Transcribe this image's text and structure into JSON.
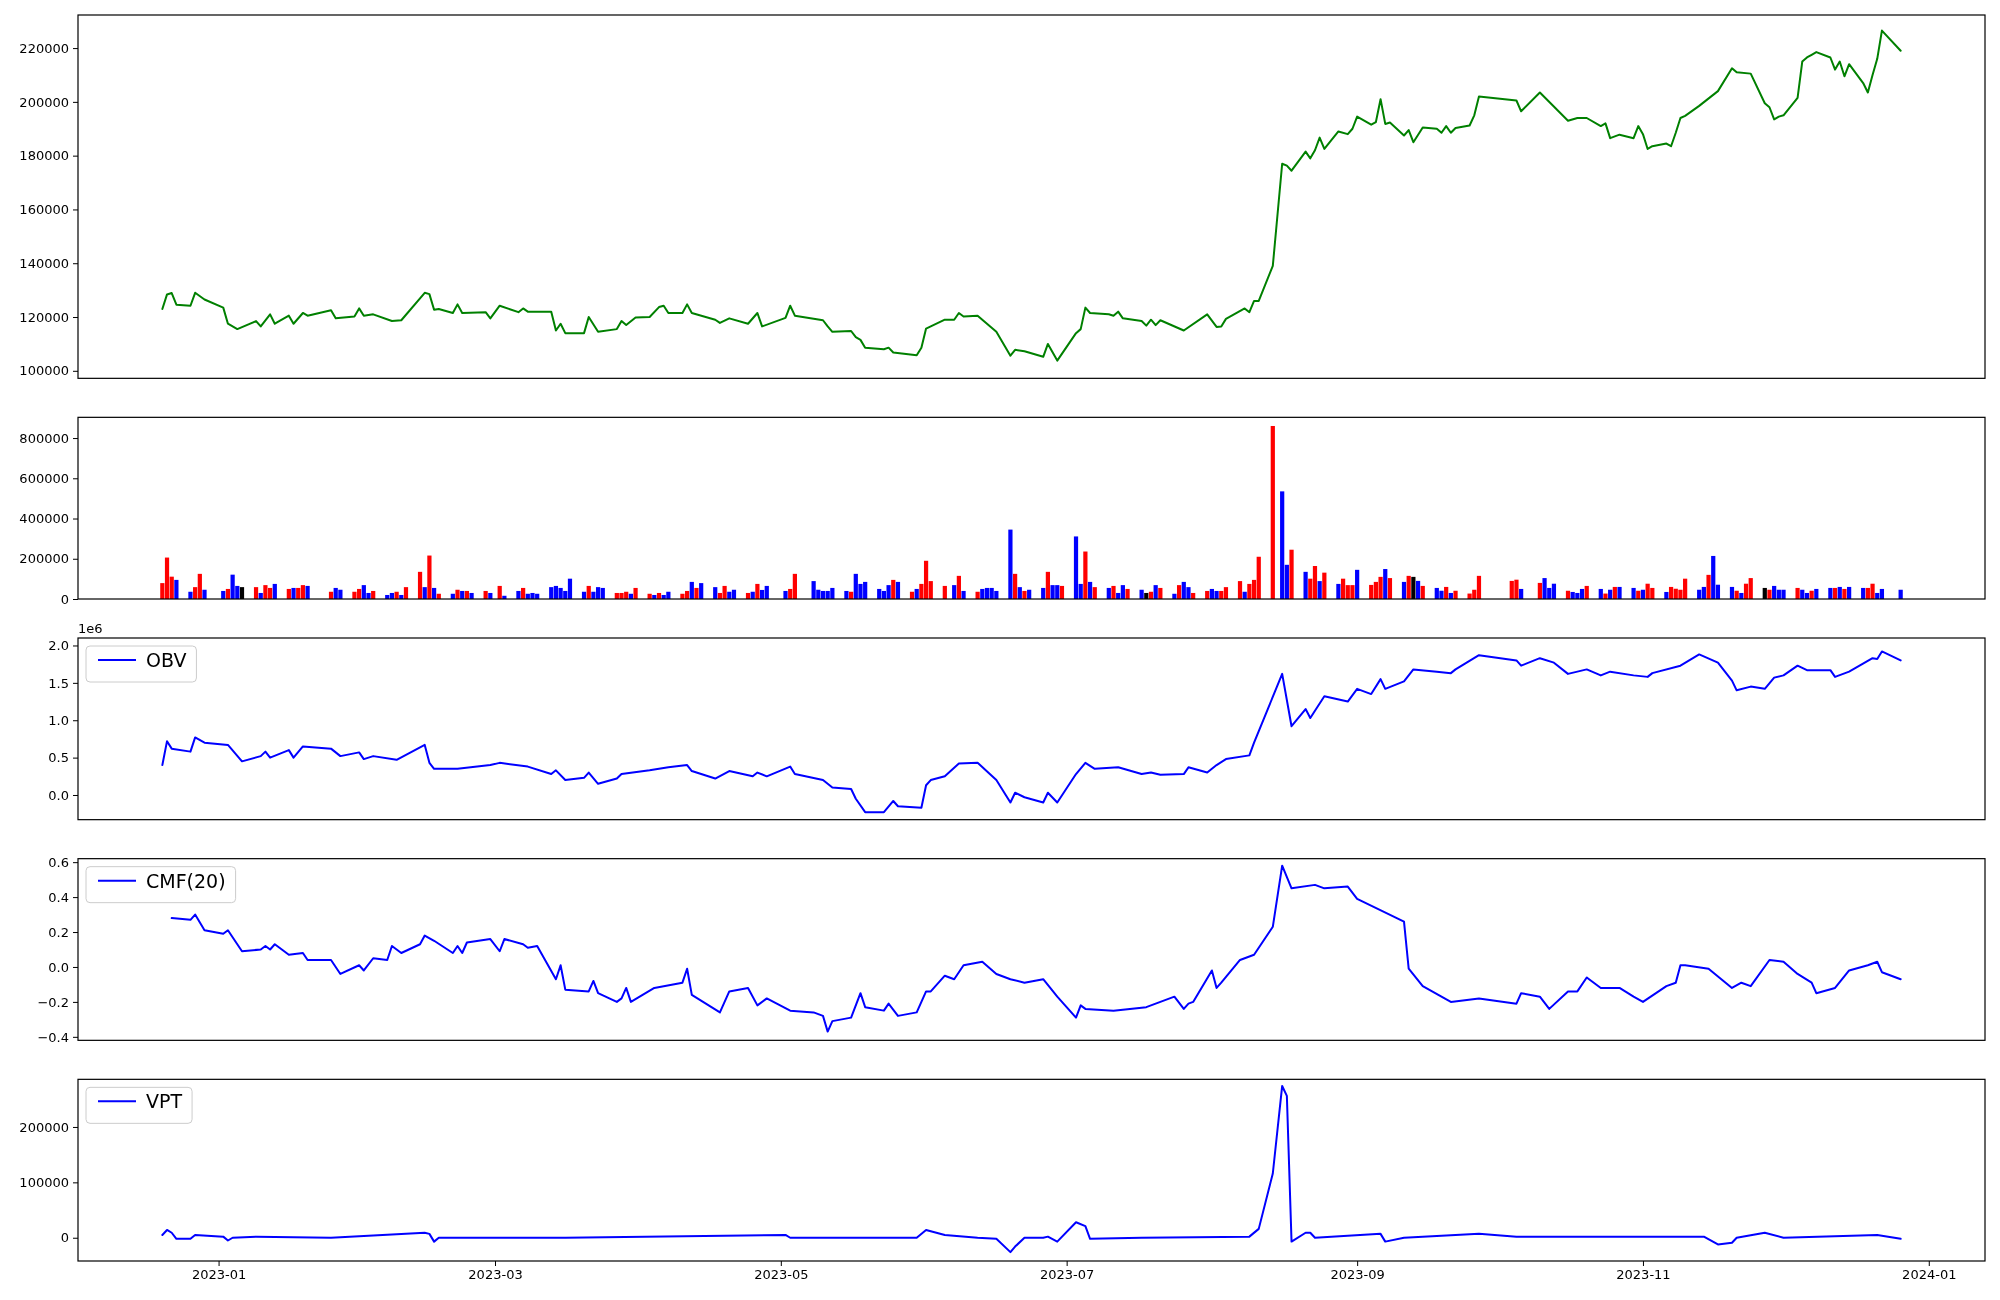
{
  "chart_data": [
    {
      "type": "line",
      "xlim": [
        "2022-12-02",
        "2024-01-13"
      ],
      "ylim": [
        97200,
        232300
      ],
      "yticks": [
        100000,
        120000,
        140000,
        160000,
        180000,
        200000,
        220000
      ],
      "tick_labels": "y",
      "x": [
        "2022-12-20",
        "2022-12-21",
        "2022-12-22",
        "2022-12-23",
        "2022-12-26",
        "2022-12-27",
        "2022-12-29",
        "2023-01-02",
        "2023-01-03",
        "2023-01-05",
        "2023-01-09",
        "2023-01-10",
        "2023-01-12",
        "2023-01-13",
        "2023-01-16",
        "2023-01-17",
        "2023-01-19",
        "2023-01-20",
        "2023-01-25",
        "2023-01-26",
        "2023-01-30",
        "2023-01-31",
        "2023-02-01",
        "2023-02-03",
        "2023-02-07",
        "2023-02-09",
        "2023-02-14",
        "2023-02-15",
        "2023-02-16",
        "2023-02-17",
        "2023-02-20",
        "2023-02-21",
        "2023-02-22",
        "2023-02-27",
        "2023-02-28",
        "2023-03-02",
        "2023-03-06",
        "2023-03-07",
        "2023-03-08",
        "2023-03-13",
        "2023-03-14",
        "2023-03-15",
        "2023-03-16",
        "2023-03-20",
        "2023-03-21",
        "2023-03-23",
        "2023-03-27",
        "2023-03-28",
        "2023-03-29",
        "2023-03-31",
        "2023-04-03",
        "2023-04-05",
        "2023-04-06",
        "2023-04-07",
        "2023-04-10",
        "2023-04-11",
        "2023-04-12",
        "2023-04-17",
        "2023-04-18",
        "2023-04-20",
        "2023-04-24",
        "2023-04-26",
        "2023-04-27",
        "2023-05-02",
        "2023-05-03",
        "2023-05-04",
        "2023-05-10",
        "2023-05-11",
        "2023-05-12",
        "2023-05-16",
        "2023-05-17",
        "2023-05-18",
        "2023-05-19",
        "2023-05-23",
        "2023-05-24",
        "2023-05-25",
        "2023-05-30",
        "2023-05-31",
        "2023-06-01",
        "2023-06-02",
        "2023-06-05",
        "2023-06-07",
        "2023-06-08",
        "2023-06-09",
        "2023-06-12",
        "2023-06-16",
        "2023-06-19",
        "2023-06-20",
        "2023-06-22",
        "2023-06-26",
        "2023-06-27",
        "2023-06-29",
        "2023-07-03",
        "2023-07-04",
        "2023-07-05",
        "2023-07-06",
        "2023-07-10",
        "2023-07-11",
        "2023-07-12",
        "2023-07-13",
        "2023-07-17",
        "2023-07-18",
        "2023-07-19",
        "2023-07-20",
        "2023-07-21",
        "2023-07-26",
        "2023-07-31",
        "2023-08-02",
        "2023-08-03",
        "2023-08-04",
        "2023-08-08",
        "2023-08-09",
        "2023-08-10",
        "2023-08-11",
        "2023-08-14",
        "2023-08-16",
        "2023-08-17",
        "2023-08-18",
        "2023-08-21",
        "2023-08-22",
        "2023-08-23",
        "2023-08-24",
        "2023-08-25",
        "2023-08-28",
        "2023-08-30",
        "2023-08-31",
        "2023-09-01",
        "2023-09-04",
        "2023-09-05",
        "2023-09-06",
        "2023-09-07",
        "2023-09-08",
        "2023-09-11",
        "2023-09-12",
        "2023-09-13",
        "2023-09-15",
        "2023-09-18",
        "2023-09-19",
        "2023-09-20",
        "2023-09-21",
        "2023-09-22",
        "2023-09-25",
        "2023-09-26",
        "2023-09-27",
        "2023-10-05",
        "2023-10-06",
        "2023-10-10",
        "2023-10-16",
        "2023-10-18",
        "2023-10-20",
        "2023-10-23",
        "2023-10-24",
        "2023-10-25",
        "2023-10-27",
        "2023-10-30",
        "2023-10-31",
        "2023-11-01",
        "2023-11-02",
        "2023-11-03",
        "2023-11-06",
        "2023-11-07",
        "2023-11-08",
        "2023-11-09",
        "2023-11-10",
        "2023-11-13",
        "2023-11-17",
        "2023-11-20",
        "2023-11-21",
        "2023-11-24",
        "2023-11-27",
        "2023-11-28",
        "2023-11-29",
        "2023-11-30",
        "2023-12-01",
        "2023-12-04",
        "2023-12-05",
        "2023-12-06",
        "2023-12-07",
        "2023-12-08",
        "2023-12-11",
        "2023-12-12",
        "2023-12-13",
        "2023-12-14",
        "2023-12-15",
        "2023-12-18",
        "2023-12-19",
        "2023-12-20",
        "2023-12-21",
        "2023-12-22",
        "2023-12-26"
      ],
      "series": [
        {
          "color": "#008000",
          "values": [
            123000,
            128400,
            128900,
            124600,
            124200,
            129000,
            126500,
            123500,
            117500,
            115500,
            118500,
            116500,
            121000,
            117500,
            120500,
            117500,
            121500,
            120500,
            122500,
            119500,
            120200,
            123200,
            120500,
            121000,
            118500,
            118800,
            129000,
            128500,
            122700,
            123000,
            121500,
            124700,
            121500,
            121800,
            119500,
            124200,
            121800,
            123200,
            122000,
            122000,
            115000,
            117500,
            114000,
            114000,
            120000,
            114500,
            115500,
            118500,
            117000,
            119800,
            120000,
            123700,
            124200,
            121500,
            121500,
            124700,
            121500,
            119000,
            117800,
            119500,
            117500,
            121500,
            116500,
            119700,
            124200,
            120500,
            118800,
            116500,
            114500,
            114800,
            112500,
            111500,
            108600,
            108000,
            108600,
            106800,
            105800,
            108600,
            115700,
            116500,
            119000,
            119000,
            121500,
            120200,
            120500,
            114500,
            105600,
            107800,
            107300,
            105200,
            110000,
            103800,
            114000,
            115500,
            123500,
            121500,
            121000,
            120500,
            122000,
            119500,
            118500,
            116800,
            119000,
            117000,
            118800,
            115000,
            121000,
            116300,
            116500,
            119300,
            123200,
            121800,
            126000,
            126000,
            139000,
            177000,
            176300,
            174400,
            181500,
            179000,
            182000,
            186700,
            182500,
            189000,
            188000,
            190000,
            194500,
            191500,
            192500,
            201000,
            191800,
            192300,
            187500,
            189500,
            185000,
            190500,
            190000,
            188500,
            191000,
            188500,
            190300,
            191200,
            195000,
            202000,
            200500,
            196500,
            203500,
            193000,
            194000,
            194000,
            191000,
            192000,
            186500,
            187800,
            186500,
            191000,
            188000,
            182500,
            183500,
            184500,
            183500,
            188500,
            194000,
            194800,
            198500,
            204000,
            212500,
            211000,
            210500,
            199500,
            198000,
            193500,
            194500,
            195000,
            201500,
            215000,
            216500,
            217500,
            218500,
            216500,
            212000,
            215000,
            209500,
            214000,
            207000,
            203500,
            210000,
            216000,
            226500,
            219000
          ]
        }
      ]
    },
    {
      "type": "bar",
      "xlim": [
        "2022-12-02",
        "2024-01-13"
      ],
      "ylim": [
        0,
        903000
      ],
      "yticks": [
        0,
        200000,
        400000,
        600000,
        800000
      ],
      "tick_labels": "y",
      "x": [
        "2022-12-20",
        "2022-12-21",
        "2022-12-22",
        "2022-12-23",
        "2022-12-26",
        "2022-12-27",
        "2022-12-28",
        "2022-12-29",
        "2023-01-02",
        "2023-01-03",
        "2023-01-04",
        "2023-01-05",
        "2023-01-06",
        "2023-01-09",
        "2023-01-10",
        "2023-01-11",
        "2023-01-12",
        "2023-01-13",
        "2023-01-16",
        "2023-01-17",
        "2023-01-18",
        "2023-01-19",
        "2023-01-20",
        "2023-01-25",
        "2023-01-26",
        "2023-01-27",
        "2023-01-30",
        "2023-01-31",
        "2023-02-01",
        "2023-02-02",
        "2023-02-03",
        "2023-02-06",
        "2023-02-07",
        "2023-02-08",
        "2023-02-09",
        "2023-02-10",
        "2023-02-13",
        "2023-02-14",
        "2023-02-15",
        "2023-02-16",
        "2023-02-17",
        "2023-02-20",
        "2023-02-21",
        "2023-02-22",
        "2023-02-23",
        "2023-02-24",
        "2023-02-27",
        "2023-02-28",
        "2023-03-02",
        "2023-03-03",
        "2023-03-06",
        "2023-03-07",
        "2023-03-08",
        "2023-03-09",
        "2023-03-10",
        "2023-03-13",
        "2023-03-14",
        "2023-03-15",
        "2023-03-16",
        "2023-03-17",
        "2023-03-20",
        "2023-03-21",
        "2023-03-22",
        "2023-03-23",
        "2023-03-24",
        "2023-03-27",
        "2023-03-28",
        "2023-03-29",
        "2023-03-30",
        "2023-03-31",
        "2023-04-03",
        "2023-04-04",
        "2023-04-05",
        "2023-04-06",
        "2023-04-07",
        "2023-04-10",
        "2023-04-11",
        "2023-04-12",
        "2023-04-13",
        "2023-04-14",
        "2023-04-17",
        "2023-04-18",
        "2023-04-19",
        "2023-04-20",
        "2023-04-21",
        "2023-04-24",
        "2023-04-25",
        "2023-04-26",
        "2023-04-27",
        "2023-04-28",
        "2023-05-02",
        "2023-05-03",
        "2023-05-04",
        "2023-05-08",
        "2023-05-09",
        "2023-05-10",
        "2023-05-11",
        "2023-05-12",
        "2023-05-15",
        "2023-05-16",
        "2023-05-17",
        "2023-05-18",
        "2023-05-19",
        "2023-05-22",
        "2023-05-23",
        "2023-05-24",
        "2023-05-25",
        "2023-05-26",
        "2023-05-29",
        "2023-05-30",
        "2023-05-31",
        "2023-06-01",
        "2023-06-02",
        "2023-06-05",
        "2023-06-07",
        "2023-06-08",
        "2023-06-09",
        "2023-06-12",
        "2023-06-13",
        "2023-06-14",
        "2023-06-15",
        "2023-06-16",
        "2023-06-19",
        "2023-06-20",
        "2023-06-21",
        "2023-06-22",
        "2023-06-23",
        "2023-06-26",
        "2023-06-27",
        "2023-06-28",
        "2023-06-29",
        "2023-06-30",
        "2023-07-03",
        "2023-07-04",
        "2023-07-05",
        "2023-07-06",
        "2023-07-07",
        "2023-07-10",
        "2023-07-11",
        "2023-07-12",
        "2023-07-13",
        "2023-07-14",
        "2023-07-17",
        "2023-07-18",
        "2023-07-19",
        "2023-07-20",
        "2023-07-21",
        "2023-07-24",
        "2023-07-25",
        "2023-07-26",
        "2023-07-27",
        "2023-07-28",
        "2023-07-31",
        "2023-08-01",
        "2023-08-02",
        "2023-08-03",
        "2023-08-04",
        "2023-08-07",
        "2023-08-08",
        "2023-08-09",
        "2023-08-10",
        "2023-08-11",
        "2023-08-14",
        "2023-08-16",
        "2023-08-17",
        "2023-08-18",
        "2023-08-21",
        "2023-08-22",
        "2023-08-23",
        "2023-08-24",
        "2023-08-25",
        "2023-08-28",
        "2023-08-29",
        "2023-08-30",
        "2023-08-31",
        "2023-09-01",
        "2023-09-04",
        "2023-09-05",
        "2023-09-06",
        "2023-09-07",
        "2023-09-08",
        "2023-09-11",
        "2023-09-12",
        "2023-09-13",
        "2023-09-14",
        "2023-09-15",
        "2023-09-18",
        "2023-09-19",
        "2023-09-20",
        "2023-09-21",
        "2023-09-22",
        "2023-09-25",
        "2023-09-26",
        "2023-09-27",
        "2023-10-04",
        "2023-10-05",
        "2023-10-06",
        "2023-10-10",
        "2023-10-11",
        "2023-10-12",
        "2023-10-13",
        "2023-10-16",
        "2023-10-17",
        "2023-10-18",
        "2023-10-19",
        "2023-10-20",
        "2023-10-23",
        "2023-10-24",
        "2023-10-25",
        "2023-10-26",
        "2023-10-27",
        "2023-10-30",
        "2023-10-31",
        "2023-11-01",
        "2023-11-02",
        "2023-11-03",
        "2023-11-06",
        "2023-11-07",
        "2023-11-08",
        "2023-11-09",
        "2023-11-10",
        "2023-11-13",
        "2023-11-14",
        "2023-11-15",
        "2023-11-16",
        "2023-11-17",
        "2023-11-20",
        "2023-11-21",
        "2023-11-22",
        "2023-11-23",
        "2023-11-24",
        "2023-11-27",
        "2023-11-28",
        "2023-11-29",
        "2023-11-30",
        "2023-12-01",
        "2023-12-04",
        "2023-12-05",
        "2023-12-06",
        "2023-12-07",
        "2023-12-08",
        "2023-12-11",
        "2023-12-12",
        "2023-12-13",
        "2023-12-14",
        "2023-12-15",
        "2023-12-18",
        "2023-12-19",
        "2023-12-20",
        "2023-12-21",
        "2023-12-22",
        "2023-12-26"
      ],
      "values": [
        79000,
        206000,
        111000,
        95000,
        36000,
        59000,
        125000,
        46000,
        40000,
        50000,
        121000,
        65000,
        59000,
        59000,
        30000,
        69000,
        55000,
        75000,
        50000,
        55000,
        55000,
        69000,
        65000,
        36000,
        55000,
        46000,
        36000,
        50000,
        69000,
        30000,
        40000,
        20000,
        30000,
        36000,
        20000,
        59000,
        135000,
        59000,
        216000,
        55000,
        26000,
        26000,
        46000,
        40000,
        40000,
        30000,
        40000,
        30000,
        65000,
        16000,
        40000,
        55000,
        26000,
        30000,
        26000,
        59000,
        65000,
        55000,
        40000,
        101000,
        36000,
        65000,
        36000,
        59000,
        55000,
        30000,
        30000,
        36000,
        26000,
        55000,
        26000,
        20000,
        30000,
        20000,
        36000,
        26000,
        40000,
        85000,
        55000,
        79000,
        59000,
        30000,
        65000,
        36000,
        46000,
        30000,
        36000,
        75000,
        45000,
        65000,
        40000,
        50000,
        125000,
        89000,
        46000,
        40000,
        40000,
        55000,
        40000,
        36000,
        125000,
        75000,
        85000,
        50000,
        40000,
        69000,
        95000,
        85000,
        36000,
        50000,
        75000,
        190000,
        89000,
        65000,
        69000,
        115000,
        40000,
        36000,
        50000,
        55000,
        55000,
        40000,
        345000,
        125000,
        59000,
        40000,
        46000,
        55000,
        135000,
        69000,
        69000,
        65000,
        311000,
        75000,
        236000,
        85000,
        59000,
        55000,
        65000,
        30000,
        69000,
        50000,
        46000,
        30000,
        36000,
        69000,
        55000,
        26000,
        69000,
        85000,
        59000,
        30000,
        40000,
        50000,
        40000,
        40000,
        59000,
        89000,
        36000,
        75000,
        95000,
        210000,
        860000,
        535000,
        170000,
        245000,
        135000,
        101000,
        164000,
        89000,
        131000,
        75000,
        101000,
        69000,
        69000,
        145000,
        70000,
        85000,
        110000,
        149000,
        104000,
        85000,
        115000,
        110000,
        90000,
        65000,
        55000,
        41000,
        60000,
        30000,
        41000,
        27000,
        46000,
        115000,
        90000,
        96000,
        50000,
        80000,
        104000,
        55000,
        76000,
        41000,
        35000,
        30000,
        50000,
        65000,
        50000,
        27000,
        46000,
        60000,
        60000,
        55000,
        41000,
        46000,
        76000,
        55000,
        35000,
        60000,
        51000,
        46000,
        101000,
        46000,
        60000,
        120000,
        214000,
        71000,
        60000,
        41000,
        30000,
        76000,
        104000,
        55000,
        46000,
        65000,
        46000,
        46000,
        55000,
        46000,
        30000,
        41000,
        50000,
        55000,
        55000,
        60000,
        50000,
        60000,
        55000,
        55000,
        76000,
        30000,
        50000,
        46000
      ],
      "colors": [
        "#ff0000",
        "#ff0000",
        "#ff0000",
        "#0000ff",
        "#0000ff",
        "#ff0000",
        "#ff0000",
        "#0000ff",
        "#0000ff",
        "#ff0000",
        "#0000ff",
        "#0000ff",
        "#000000",
        "#ff0000",
        "#0000ff",
        "#ff0000",
        "#ff0000",
        "#0000ff",
        "#ff0000",
        "#0000ff",
        "#ff0000",
        "#ff0000",
        "#0000ff",
        "#ff0000",
        "#0000ff",
        "#0000ff",
        "#ff0000",
        "#ff0000",
        "#0000ff",
        "#0000ff",
        "#ff0000",
        "#0000ff",
        "#0000ff",
        "#ff0000",
        "#0000ff",
        "#ff0000",
        "#ff0000",
        "#0000ff",
        "#ff0000",
        "#0000ff",
        "#ff0000",
        "#0000ff",
        "#ff0000",
        "#0000ff",
        "#ff0000",
        "#0000ff",
        "#ff0000",
        "#0000ff",
        "#ff0000",
        "#0000ff",
        "#0000ff",
        "#ff0000",
        "#0000ff",
        "#0000ff",
        "#0000ff",
        "#0000ff",
        "#0000ff",
        "#0000ff",
        "#0000ff",
        "#0000ff",
        "#0000ff",
        "#ff0000",
        "#0000ff",
        "#0000ff",
        "#0000ff",
        "#ff0000",
        "#ff0000",
        "#ff0000",
        "#0000ff",
        "#ff0000",
        "#ff0000",
        "#0000ff",
        "#ff0000",
        "#0000ff",
        "#0000ff",
        "#ff0000",
        "#ff0000",
        "#0000ff",
        "#ff0000",
        "#0000ff",
        "#0000ff",
        "#ff0000",
        "#ff0000",
        "#0000ff",
        "#0000ff",
        "#ff0000",
        "#0000ff",
        "#ff0000",
        "#0000ff",
        "#0000ff",
        "#0000ff",
        "#ff0000",
        "#ff0000",
        "#0000ff",
        "#0000ff",
        "#0000ff",
        "#0000ff",
        "#0000ff",
        "#0000ff",
        "#ff0000",
        "#0000ff",
        "#0000ff",
        "#0000ff",
        "#0000ff",
        "#0000ff",
        "#0000ff",
        "#ff0000",
        "#0000ff",
        "#ff0000",
        "#0000ff",
        "#ff0000",
        "#ff0000",
        "#ff0000",
        "#ff0000",
        "#0000ff",
        "#ff0000",
        "#0000ff",
        "#ff0000",
        "#0000ff",
        "#0000ff",
        "#0000ff",
        "#0000ff",
        "#0000ff",
        "#ff0000",
        "#0000ff",
        "#ff0000",
        "#0000ff",
        "#0000ff",
        "#ff0000",
        "#0000ff",
        "#0000ff",
        "#ff0000",
        "#0000ff",
        "#0000ff",
        "#ff0000",
        "#0000ff",
        "#ff0000",
        "#0000ff",
        "#ff0000",
        "#0000ff",
        "#0000ff",
        "#ff0000",
        "#0000ff",
        "#000000",
        "#ff0000",
        "#0000ff",
        "#ff0000",
        "#0000ff",
        "#ff0000",
        "#0000ff",
        "#0000ff",
        "#ff0000",
        "#ff0000",
        "#0000ff",
        "#0000ff",
        "#ff0000",
        "#ff0000",
        "#ff0000",
        "#0000ff",
        "#ff0000",
        "#ff0000",
        "#ff0000",
        "#ff0000",
        "#0000ff",
        "#0000ff",
        "#ff0000",
        "#0000ff",
        "#ff0000",
        "#ff0000",
        "#0000ff",
        "#ff0000",
        "#0000ff",
        "#ff0000",
        "#ff0000",
        "#ff0000",
        "#0000ff",
        "#ff0000",
        "#ff0000",
        "#ff0000",
        "#0000ff",
        "#ff0000",
        "#0000ff",
        "#ff0000",
        "#000000",
        "#0000ff",
        "#ff0000",
        "#0000ff",
        "#0000ff",
        "#ff0000",
        "#0000ff",
        "#ff0000",
        "#ff0000",
        "#ff0000",
        "#ff0000",
        "#ff0000",
        "#ff0000",
        "#0000ff",
        "#ff0000",
        "#0000ff",
        "#0000ff",
        "#0000ff",
        "#ff0000",
        "#0000ff",
        "#0000ff",
        "#0000ff",
        "#ff0000",
        "#0000ff",
        "#ff0000",
        "#0000ff",
        "#ff0000",
        "#0000ff",
        "#0000ff",
        "#ff0000",
        "#0000ff",
        "#ff0000",
        "#ff0000",
        "#0000ff",
        "#ff0000",
        "#ff0000",
        "#ff0000",
        "#ff0000",
        "#0000ff",
        "#0000ff",
        "#ff0000",
        "#0000ff",
        "#0000ff",
        "#0000ff",
        "#ff0000",
        "#0000ff",
        "#ff0000",
        "#ff0000",
        "#000000",
        "#ff0000",
        "#0000ff",
        "#0000ff",
        "#0000ff",
        "#ff0000",
        "#0000ff",
        "#0000ff",
        "#ff0000",
        "#0000ff",
        "#0000ff",
        "#ff0000",
        "#0000ff",
        "#ff0000",
        "#0000ff",
        "#0000ff",
        "#ff0000",
        "#ff0000",
        "#0000ff",
        "#0000ff",
        "#0000ff"
      ]
    },
    {
      "type": "line",
      "xlim": [
        "2022-12-02",
        "2024-01-13"
      ],
      "ylim": [
        -0.33,
        2.1
      ],
      "yticks": [
        {
          "value": 0,
          "label": "0.0"
        },
        {
          "value": 0.5,
          "label": "0.5"
        },
        {
          "value": 1,
          "label": "1.0"
        },
        {
          "value": 1.5,
          "label": "1.5"
        },
        {
          "value": 2,
          "label": "2.0"
        }
      ],
      "tick_labels": "y",
      "legend": "top left",
      "annotations": [
        "1e6"
      ],
      "x": [
        "2022-12-20",
        "2022-12-21",
        "2022-12-22",
        "2022-12-26",
        "2022-12-27",
        "2022-12-29",
        "2023-01-03",
        "2023-01-06",
        "2023-01-10",
        "2023-01-11",
        "2023-01-12",
        "2023-01-16",
        "2023-01-17",
        "2023-01-19",
        "2023-01-25",
        "2023-01-27",
        "2023-01-31",
        "2023-02-01",
        "2023-02-03",
        "2023-02-08",
        "2023-02-14",
        "2023-02-15",
        "2023-02-16",
        "2023-02-21",
        "2023-02-28",
        "2023-03-02",
        "2023-03-08",
        "2023-03-13",
        "2023-03-14",
        "2023-03-16",
        "2023-03-20",
        "2023-03-21",
        "2023-03-23",
        "2023-03-27",
        "2023-03-28",
        "2023-04-03",
        "2023-04-07",
        "2023-04-11",
        "2023-04-12",
        "2023-04-17",
        "2023-04-20",
        "2023-04-25",
        "2023-04-26",
        "2023-04-28",
        "2023-05-03",
        "2023-05-04",
        "2023-05-10",
        "2023-05-12",
        "2023-05-16",
        "2023-05-17",
        "2023-05-19",
        "2023-05-23",
        "2023-05-25",
        "2023-05-26",
        "2023-05-31",
        "2023-06-01",
        "2023-06-02",
        "2023-06-05",
        "2023-06-08",
        "2023-06-12",
        "2023-06-16",
        "2023-06-19",
        "2023-06-20",
        "2023-06-22",
        "2023-06-26",
        "2023-06-27",
        "2023-06-29",
        "2023-07-03",
        "2023-07-05",
        "2023-07-07",
        "2023-07-12",
        "2023-07-17",
        "2023-07-19",
        "2023-07-21",
        "2023-07-26",
        "2023-07-27",
        "2023-07-31",
        "2023-08-02",
        "2023-08-04",
        "2023-08-09",
        "2023-08-10",
        "2023-08-16",
        "2023-08-18",
        "2023-08-21",
        "2023-08-22",
        "2023-08-25",
        "2023-08-30",
        "2023-09-01",
        "2023-09-04",
        "2023-09-06",
        "2023-09-07",
        "2023-09-11",
        "2023-09-13",
        "2023-09-18",
        "2023-09-21",
        "2023-09-22",
        "2023-09-27",
        "2023-10-05",
        "2023-10-06",
        "2023-10-10",
        "2023-10-13",
        "2023-10-16",
        "2023-10-20",
        "2023-10-23",
        "2023-10-25",
        "2023-10-30",
        "2023-11-02",
        "2023-11-03",
        "2023-11-09",
        "2023-11-13",
        "2023-11-17",
        "2023-11-20",
        "2023-11-21",
        "2023-11-24",
        "2023-11-27",
        "2023-11-29",
        "2023-12-01",
        "2023-12-04",
        "2023-12-06",
        "2023-12-11",
        "2023-12-12",
        "2023-12-15",
        "2023-12-20",
        "2023-12-21",
        "2023-12-22",
        "2023-12-26"
      ],
      "series": [
        {
          "name": "OBV",
          "color": "#0000ff",
          "values": [
            0.4,
            0.72,
            0.62,
            0.58,
            0.77,
            0.7,
            0.67,
            0.45,
            0.52,
            0.58,
            0.5,
            0.6,
            0.5,
            0.65,
            0.62,
            0.52,
            0.57,
            0.48,
            0.52,
            0.47,
            0.67,
            0.43,
            0.35,
            0.35,
            0.4,
            0.43,
            0.38,
            0.28,
            0.33,
            0.2,
            0.23,
            0.3,
            0.15,
            0.22,
            0.28,
            0.33,
            0.37,
            0.4,
            0.32,
            0.22,
            0.32,
            0.25,
            0.3,
            0.25,
            0.38,
            0.28,
            0.2,
            0.1,
            0.08,
            -0.05,
            -0.23,
            -0.23,
            -0.08,
            -0.15,
            -0.17,
            0.13,
            0.2,
            0.25,
            0.42,
            0.43,
            0.2,
            -0.1,
            0.03,
            -0.03,
            -0.1,
            0.03,
            -0.1,
            0.28,
            0.43,
            0.35,
            0.37,
            0.28,
            0.3,
            0.27,
            0.28,
            0.37,
            0.3,
            0.4,
            0.48,
            0.53,
            0.7,
            1.62,
            0.92,
            1.15,
            1.03,
            1.32,
            1.25,
            1.42,
            1.35,
            1.55,
            1.42,
            1.52,
            1.68,
            1.65,
            1.63,
            1.68,
            1.87,
            1.8,
            1.73,
            1.83,
            1.77,
            1.62,
            1.68,
            1.6,
            1.65,
            1.6,
            1.58,
            1.63,
            1.73,
            1.88,
            1.77,
            1.53,
            1.4,
            1.45,
            1.42,
            1.57,
            1.6,
            1.73,
            1.67,
            1.67,
            1.58,
            1.65,
            1.83,
            1.82,
            1.92,
            1.8
          ]
        }
      ]
    },
    {
      "type": "line",
      "xlim": [
        "2022-12-02",
        "2024-01-13"
      ],
      "ylim": [
        -0.42,
        0.62
      ],
      "yticks": [
        {
          "value": -0.4,
          "label": "−0.4"
        },
        {
          "value": -0.2,
          "label": "−0.2"
        },
        {
          "value": 0,
          "label": "0.0"
        },
        {
          "value": 0.2,
          "label": "0.2"
        },
        {
          "value": 0.4,
          "label": "0.4"
        },
        {
          "value": 0.6,
          "label": "0.6"
        }
      ],
      "tick_labels": "y",
      "legend": "top left",
      "x": [
        "2022-12-22",
        "2022-12-26",
        "2022-12-27",
        "2022-12-29",
        "2023-01-02",
        "2023-01-03",
        "2023-01-05",
        "2023-01-06",
        "2023-01-10",
        "2023-01-11",
        "2023-01-12",
        "2023-01-13",
        "2023-01-16",
        "2023-01-19",
        "2023-01-20",
        "2023-01-25",
        "2023-01-27",
        "2023-01-31",
        "2023-02-01",
        "2023-02-03",
        "2023-02-06",
        "2023-02-07",
        "2023-02-09",
        "2023-02-13",
        "2023-02-14",
        "2023-02-16",
        "2023-02-20",
        "2023-02-21",
        "2023-02-22",
        "2023-02-23",
        "2023-02-28",
        "2023-03-02",
        "2023-03-03",
        "2023-03-07",
        "2023-03-08",
        "2023-03-10",
        "2023-03-14",
        "2023-03-15",
        "2023-03-16",
        "2023-03-21",
        "2023-03-22",
        "2023-03-23",
        "2023-03-27",
        "2023-03-28",
        "2023-03-29",
        "2023-03-30",
        "2023-04-04",
        "2023-04-10",
        "2023-04-11",
        "2023-04-12",
        "2023-04-18",
        "2023-04-20",
        "2023-04-24",
        "2023-04-26",
        "2023-04-28",
        "2023-05-03",
        "2023-05-08",
        "2023-05-10",
        "2023-05-11",
        "2023-05-12",
        "2023-05-16",
        "2023-05-18",
        "2023-05-19",
        "2023-05-23",
        "2023-05-24",
        "2023-05-26",
        "2023-05-30",
        "2023-06-01",
        "2023-06-02",
        "2023-06-05",
        "2023-06-07",
        "2023-06-09",
        "2023-06-13",
        "2023-06-16",
        "2023-06-19",
        "2023-06-22",
        "2023-06-26",
        "2023-06-29",
        "2023-07-03",
        "2023-07-04",
        "2023-07-05",
        "2023-07-11",
        "2023-07-18",
        "2023-07-24",
        "2023-07-26",
        "2023-07-27",
        "2023-07-28",
        "2023-08-01",
        "2023-08-02",
        "2023-08-03",
        "2023-08-07",
        "2023-08-10",
        "2023-08-14",
        "2023-08-16",
        "2023-08-18",
        "2023-08-23",
        "2023-08-25",
        "2023-08-30",
        "2023-09-01",
        "2023-09-11",
        "2023-09-12",
        "2023-09-15",
        "2023-09-21",
        "2023-09-27",
        "2023-10-05",
        "2023-10-06",
        "2023-10-10",
        "2023-10-12",
        "2023-10-16",
        "2023-10-18",
        "2023-10-20",
        "2023-10-23",
        "2023-10-27",
        "2023-10-30",
        "2023-11-01",
        "2023-11-06",
        "2023-11-08",
        "2023-11-09",
        "2023-11-10",
        "2023-11-15",
        "2023-11-20",
        "2023-11-22",
        "2023-11-24",
        "2023-11-28",
        "2023-12-01",
        "2023-12-04",
        "2023-12-07",
        "2023-12-08",
        "2023-12-12",
        "2023-12-15",
        "2023-12-19",
        "2023-12-21",
        "2023-12-22",
        "2023-12-26"
      ],
      "series": [
        {
          "name": "CMF(20)",
          "color": "#0000ff",
          "values": [
            0.28,
            0.27,
            0.3,
            0.21,
            0.19,
            0.21,
            0.13,
            0.09,
            0.1,
            0.12,
            0.1,
            0.13,
            0.07,
            0.08,
            0.04,
            0.04,
            -0.04,
            0.01,
            -0.02,
            0.05,
            0.04,
            0.12,
            0.08,
            0.13,
            0.18,
            0.15,
            0.08,
            0.12,
            0.08,
            0.14,
            0.16,
            0.09,
            0.16,
            0.13,
            0.11,
            0.12,
            -0.07,
            0.01,
            -0.13,
            -0.14,
            -0.08,
            -0.15,
            -0.2,
            -0.18,
            -0.12,
            -0.2,
            -0.12,
            -0.09,
            -0.01,
            -0.16,
            -0.26,
            -0.14,
            -0.12,
            -0.22,
            -0.18,
            -0.25,
            -0.26,
            -0.28,
            -0.37,
            -0.31,
            -0.29,
            -0.15,
            -0.23,
            -0.25,
            -0.21,
            -0.28,
            -0.26,
            -0.14,
            -0.14,
            -0.05,
            -0.07,
            0.01,
            0.03,
            -0.04,
            -0.07,
            -0.09,
            -0.07,
            -0.17,
            -0.29,
            -0.22,
            -0.24,
            -0.25,
            -0.23,
            -0.17,
            -0.24,
            -0.21,
            -0.2,
            -0.02,
            -0.12,
            -0.09,
            0.04,
            0.07,
            0.23,
            0.58,
            0.45,
            0.47,
            0.45,
            0.46,
            0.39,
            0.26,
            -0.01,
            -0.11,
            -0.2,
            -0.18,
            -0.21,
            -0.15,
            -0.17,
            -0.24,
            -0.14,
            -0.14,
            -0.06,
            -0.12,
            -0.12,
            -0.17,
            -0.2,
            -0.11,
            -0.09,
            0.01,
            0.01,
            -0.01,
            -0.12,
            -0.09,
            -0.11,
            0.04,
            0.03,
            -0.04,
            -0.09,
            -0.15,
            -0.12,
            -0.02,
            0.01,
            0.03,
            -0.03,
            -0.07
          ]
        }
      ]
    },
    {
      "type": "line",
      "xlim": [
        "2022-12-02",
        "2024-01-13"
      ],
      "ylim": [
        -42000,
        286000
      ],
      "yticks": [
        0,
        100000,
        200000
      ],
      "xticks": [
        "2023-01",
        "2023-03",
        "2023-05",
        "2023-07",
        "2023-09",
        "2023-11",
        "2024-01"
      ],
      "legend": "top left",
      "x": [
        "2022-12-20",
        "2022-12-21",
        "2022-12-22",
        "2022-12-23",
        "2022-12-26",
        "2022-12-27",
        "2023-01-02",
        "2023-01-03",
        "2023-01-04",
        "2023-01-09",
        "2023-01-25",
        "2023-02-14",
        "2023-02-15",
        "2023-02-16",
        "2023-02-17",
        "2023-03-16",
        "2023-05-02",
        "2023-05-03",
        "2023-05-30",
        "2023-06-01",
        "2023-06-05",
        "2023-06-12",
        "2023-06-16",
        "2023-06-19",
        "2023-06-20",
        "2023-06-22",
        "2023-06-26",
        "2023-06-27",
        "2023-06-29",
        "2023-07-03",
        "2023-07-05",
        "2023-07-06",
        "2023-07-17",
        "2023-08-09",
        "2023-08-11",
        "2023-08-14",
        "2023-08-16",
        "2023-08-17",
        "2023-08-18",
        "2023-08-21",
        "2023-08-22",
        "2023-08-23",
        "2023-09-06",
        "2023-09-07",
        "2023-09-11",
        "2023-09-27",
        "2023-10-05",
        "2023-11-14",
        "2023-11-17",
        "2023-11-20",
        "2023-11-21",
        "2023-11-27",
        "2023-12-01",
        "2023-12-21",
        "2023-12-26"
      ],
      "series": [
        {
          "name": "VPT",
          "color": "#0000ff",
          "values": [
            5000,
            14000,
            9000,
            -2000,
            -2000,
            5000,
            2000,
            -5000,
            0,
            2000,
            0,
            9000,
            7000,
            -7000,
            0,
            0,
            5000,
            0,
            0,
            14000,
            5000,
            0,
            -2000,
            -26000,
            -16000,
            0,
            0,
            2000,
            -7000,
            28000,
            21000,
            -2000,
            0,
            2000,
            16000,
            116000,
            274000,
            256000,
            -7000,
            9000,
            9000,
            0,
            7000,
            -7000,
            0,
            7000,
            2000,
            2000,
            -12000,
            -9000,
            0,
            9000,
            0,
            5000,
            -2000
          ]
        }
      ]
    }
  ]
}
